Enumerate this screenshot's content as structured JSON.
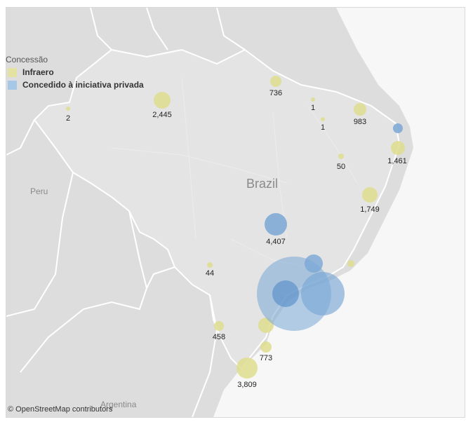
{
  "legend": {
    "title": "Concessão",
    "items": [
      {
        "label": "Infraero",
        "color": "#e3e2a3"
      },
      {
        "label": "Concedido à iniciativa privada",
        "color": "#a6c8e7"
      }
    ]
  },
  "country_labels": {
    "brazil": "Brazil",
    "peru": "Peru",
    "argentina": "Argentina"
  },
  "credit": "© OpenStreetMap contributors",
  "colors": {
    "land": "#dcdcdc",
    "land_brazil": "#e4e4e4",
    "ocean": "#f8f8f8",
    "border": "#ffffff",
    "infraero_fill": "#dedd8e",
    "private_fill": "#7aa7d6"
  },
  "points": [
    {
      "id": "rio-branco",
      "label": "2",
      "value": 2,
      "group": "Infraero"
    },
    {
      "id": "manaus",
      "label": "2,445",
      "value": 2445,
      "group": "Infraero"
    },
    {
      "id": "belem",
      "label": "736",
      "value": 736,
      "group": "Infraero"
    },
    {
      "id": "sao-luis",
      "label": "1",
      "value": 1,
      "group": "Infraero"
    },
    {
      "id": "teresina",
      "label": "1",
      "value": 1,
      "group": "Infraero"
    },
    {
      "id": "fortaleza",
      "label": "983",
      "value": 983,
      "group": "Infraero"
    },
    {
      "id": "natal",
      "label": "",
      "value": null,
      "group": "Concedido à iniciativa privada"
    },
    {
      "id": "recife",
      "label": "1,461",
      "value": 1461,
      "group": "Infraero"
    },
    {
      "id": "petrolina",
      "label": "50",
      "value": 50,
      "group": "Infraero"
    },
    {
      "id": "salvador",
      "label": "1,749",
      "value": 1749,
      "group": "Infraero"
    },
    {
      "id": "brasilia",
      "label": "4,407",
      "value": 4407,
      "group": "Concedido à iniciativa privada"
    },
    {
      "id": "campo-grande",
      "label": "44",
      "value": 44,
      "group": "Infraero"
    },
    {
      "id": "belo-horizonte",
      "label": "",
      "value": null,
      "group": "Concedido à iniciativa privada"
    },
    {
      "id": "vitoria",
      "label": "",
      "value": null,
      "group": "Infraero"
    },
    {
      "id": "sao-paulo",
      "label": "",
      "value": null,
      "group": "Concedido à iniciativa privada"
    },
    {
      "id": "campinas",
      "label": "",
      "value": null,
      "group": "Concedido à iniciativa privada"
    },
    {
      "id": "rio-de-janeiro",
      "label": "",
      "value": null,
      "group": "Concedido à iniciativa privada"
    },
    {
      "id": "curitiba",
      "label": "",
      "value": null,
      "group": "Infraero"
    },
    {
      "id": "foz-do-iguacu",
      "label": "458",
      "value": 458,
      "group": "Infraero"
    },
    {
      "id": "florianopolis",
      "label": "773",
      "value": 773,
      "group": "Infraero"
    },
    {
      "id": "porto-alegre",
      "label": "3,809",
      "value": 3809,
      "group": "Infraero"
    }
  ]
}
